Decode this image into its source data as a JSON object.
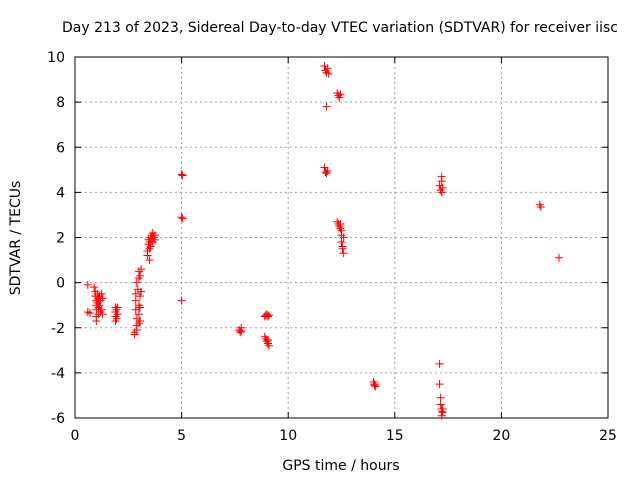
{
  "chart_data": {
    "type": "scatter",
    "title": "Day 213 of 2023, Sidereal Day-to-day VTEC variation (SDTVAR) for receiver iisc",
    "xlabel": "GPS time / hours",
    "ylabel": "SDTVAR / TECUs",
    "xlim": [
      0,
      25
    ],
    "ylim": [
      -6,
      10
    ],
    "xticks": [
      0,
      5,
      10,
      15,
      20,
      25
    ],
    "yticks": [
      -6,
      -4,
      -2,
      0,
      2,
      4,
      6,
      8,
      10
    ],
    "grid": true,
    "marker": "+",
    "color": "#ff0000",
    "series": [
      {
        "name": "SDTVAR",
        "points": [
          [
            0.6,
            -0.1
          ],
          [
            0.6,
            -1.3
          ],
          [
            0.7,
            -1.35
          ],
          [
            0.9,
            -0.2
          ],
          [
            0.95,
            -0.4
          ],
          [
            0.95,
            -0.6
          ],
          [
            1.0,
            -0.8
          ],
          [
            1.0,
            -1.0
          ],
          [
            1.0,
            -1.2
          ],
          [
            1.0,
            -1.5
          ],
          [
            1.0,
            -1.7
          ],
          [
            1.05,
            -0.5
          ],
          [
            1.05,
            -0.9
          ],
          [
            1.1,
            -0.7
          ],
          [
            1.1,
            -1.1
          ],
          [
            1.1,
            -1.4
          ],
          [
            1.15,
            -0.6
          ],
          [
            1.15,
            -1.0
          ],
          [
            1.2,
            -0.8
          ],
          [
            1.2,
            -1.3
          ],
          [
            1.25,
            -0.5
          ],
          [
            1.25,
            -1.2
          ],
          [
            1.3,
            -0.7
          ],
          [
            1.3,
            -1.4
          ],
          [
            1.9,
            -1.1
          ],
          [
            1.9,
            -1.3
          ],
          [
            1.9,
            -1.5
          ],
          [
            1.9,
            -1.7
          ],
          [
            1.95,
            -1.2
          ],
          [
            1.95,
            -1.6
          ],
          [
            2.0,
            -1.4
          ],
          [
            2.0,
            -1.1
          ],
          [
            2.8,
            -2.2
          ],
          [
            2.8,
            -2.3
          ],
          [
            2.85,
            -0.5
          ],
          [
            2.85,
            -0.8
          ],
          [
            2.85,
            -1.2
          ],
          [
            2.9,
            -1.6
          ],
          [
            2.9,
            -1.9
          ],
          [
            2.9,
            -2.1
          ],
          [
            2.9,
            0.0
          ],
          [
            2.95,
            -0.3
          ],
          [
            3.0,
            -1.0
          ],
          [
            3.0,
            -1.4
          ],
          [
            3.0,
            -1.8
          ],
          [
            3.0,
            0.2
          ],
          [
            3.0,
            0.5
          ],
          [
            3.05,
            -0.6
          ],
          [
            3.05,
            -1.1
          ],
          [
            3.05,
            -1.7
          ],
          [
            3.1,
            -0.4
          ],
          [
            3.1,
            0.6
          ],
          [
            3.05,
            0.3
          ],
          [
            3.4,
            1.2
          ],
          [
            3.4,
            1.4
          ],
          [
            3.45,
            1.7
          ],
          [
            3.45,
            1.9
          ],
          [
            3.5,
            1.0
          ],
          [
            3.5,
            1.5
          ],
          [
            3.5,
            1.8
          ],
          [
            3.55,
            2.0
          ],
          [
            3.55,
            1.6
          ],
          [
            3.6,
            1.9
          ],
          [
            3.6,
            2.1
          ],
          [
            3.65,
            1.8
          ],
          [
            3.65,
            2.2
          ],
          [
            3.7,
            2.0
          ],
          [
            3.75,
            1.9
          ],
          [
            3.75,
            2.1
          ],
          [
            5.0,
            4.8
          ],
          [
            5.05,
            4.75
          ],
          [
            5.0,
            2.9
          ],
          [
            5.05,
            2.85
          ],
          [
            5.0,
            -0.8
          ],
          [
            7.7,
            -2.1
          ],
          [
            7.75,
            -2.2
          ],
          [
            7.8,
            -2.0
          ],
          [
            7.8,
            -2.15
          ],
          [
            8.9,
            -1.5
          ],
          [
            8.95,
            -1.45
          ],
          [
            9.0,
            -1.4
          ],
          [
            9.05,
            -1.5
          ],
          [
            9.1,
            -1.45
          ],
          [
            8.9,
            -2.4
          ],
          [
            8.95,
            -2.5
          ],
          [
            9.0,
            -2.6
          ],
          [
            9.05,
            -2.7
          ],
          [
            9.1,
            -2.8
          ],
          [
            9.05,
            -2.55
          ],
          [
            11.7,
            9.6
          ],
          [
            11.75,
            9.4
          ],
          [
            11.8,
            9.3
          ],
          [
            11.85,
            9.5
          ],
          [
            11.9,
            9.25
          ],
          [
            11.8,
            7.8
          ],
          [
            11.7,
            5.1
          ],
          [
            11.75,
            4.9
          ],
          [
            11.8,
            4.85
          ],
          [
            11.85,
            4.95
          ],
          [
            12.3,
            8.4
          ],
          [
            12.35,
            8.3
          ],
          [
            12.4,
            8.2
          ],
          [
            12.45,
            8.35
          ],
          [
            12.3,
            2.7
          ],
          [
            12.35,
            2.6
          ],
          [
            12.4,
            2.5
          ],
          [
            12.45,
            2.4
          ],
          [
            12.5,
            2.3
          ],
          [
            12.5,
            2.1
          ],
          [
            12.5,
            1.8
          ],
          [
            12.55,
            1.6
          ],
          [
            12.55,
            1.5
          ],
          [
            12.6,
            1.3
          ],
          [
            12.45,
            2.6
          ],
          [
            12.6,
            2.0
          ],
          [
            14.0,
            -4.4
          ],
          [
            14.05,
            -4.5
          ],
          [
            14.1,
            -4.6
          ],
          [
            14.05,
            -4.55
          ],
          [
            17.1,
            4.3
          ],
          [
            17.15,
            4.1
          ],
          [
            17.2,
            4.5
          ],
          [
            17.2,
            4.7
          ],
          [
            17.25,
            4.2
          ],
          [
            17.2,
            4.0
          ],
          [
            17.1,
            -3.6
          ],
          [
            17.1,
            -4.5
          ],
          [
            17.15,
            -5.1
          ],
          [
            17.15,
            -5.4
          ],
          [
            17.2,
            -5.6
          ],
          [
            17.2,
            -5.7
          ],
          [
            17.25,
            -5.75
          ],
          [
            17.25,
            -5.6
          ],
          [
            17.2,
            -5.9
          ],
          [
            21.8,
            3.45
          ],
          [
            21.85,
            3.35
          ],
          [
            22.7,
            1.1
          ]
        ]
      }
    ]
  }
}
